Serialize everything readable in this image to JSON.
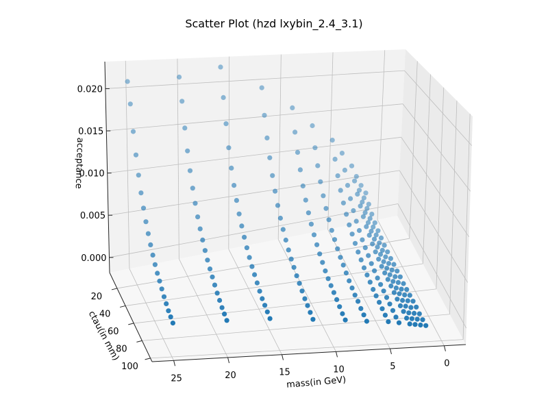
{
  "chart_data": {
    "type": "scatter",
    "title": "Scatter Plot (hzd lxybin_2.4_3.1)",
    "xlabel": "mass(in GeV)",
    "ylabel": "ctau(in mm)",
    "zlabel": "acceptance",
    "projection": "3d",
    "marker_color": "#1f77b4",
    "grid": true,
    "xlim": [
      -2,
      27
    ],
    "ylim": [
      2,
      104
    ],
    "zlim": [
      -0.0018,
      0.0232
    ],
    "x_ticks": [
      0,
      5,
      10,
      15,
      20,
      25
    ],
    "x_tick_labels": [
      "0",
      "5",
      "10",
      "15",
      "20",
      "25"
    ],
    "y_ticks": [
      20,
      40,
      60,
      80,
      100
    ],
    "y_tick_labels": [
      "20",
      "40",
      "60",
      "80",
      "100"
    ],
    "z_ticks": [
      0.0,
      0.005,
      0.01,
      0.015,
      0.02
    ],
    "z_tick_labels": [
      "0.000",
      "0.005",
      "0.010",
      "0.015",
      "0.020"
    ],
    "points_note": "grid of mass values with ctau from 5 to 100 mm in steps of 5",
    "mass_values": [
      25,
      20,
      16,
      12,
      9,
      7,
      5,
      4,
      3,
      2.5,
      2,
      1.5
    ],
    "ctau_values": [
      5,
      10,
      15,
      20,
      25,
      30,
      35,
      40,
      45,
      50,
      55,
      60,
      65,
      70,
      75,
      80,
      85,
      90,
      95,
      100
    ],
    "series": [
      {
        "mass": 25,
        "acceptance": [
          0.021,
          0.0188,
          0.016,
          0.0137,
          0.0118,
          0.0102,
          0.0089,
          0.0078,
          0.0069,
          0.0061,
          0.0054,
          0.0048,
          0.0043,
          0.0039,
          0.0035,
          0.0031,
          0.0028,
          0.0025,
          0.0023,
          0.0021
        ]
      },
      {
        "mass": 20,
        "acceptance": [
          0.0212,
          0.0187,
          0.0159,
          0.0136,
          0.0117,
          0.0101,
          0.0088,
          0.0077,
          0.0068,
          0.006,
          0.0053,
          0.0047,
          0.0042,
          0.0038,
          0.0034,
          0.003,
          0.0027,
          0.0024,
          0.0022,
          0.002
        ]
      },
      {
        "mass": 16,
        "acceptance": [
          0.0222,
          0.0188,
          0.016,
          0.0135,
          0.0115,
          0.0099,
          0.0086,
          0.0075,
          0.0066,
          0.0058,
          0.0051,
          0.0045,
          0.004,
          0.0036,
          0.0032,
          0.0028,
          0.0025,
          0.0023,
          0.0021,
          0.0019
        ]
      },
      {
        "mass": 12,
        "acceptance": [
          0.0192,
          0.0161,
          0.0137,
          0.0117,
          0.01,
          0.0086,
          0.0074,
          0.0064,
          0.0056,
          0.0049,
          0.0043,
          0.0038,
          0.0034,
          0.003,
          0.0027,
          0.0024,
          0.0021,
          0.0019,
          0.0017,
          0.0015
        ]
      },
      {
        "mass": 9,
        "acceptance": [
          0.0162,
          0.0135,
          0.0114,
          0.0097,
          0.0082,
          0.007,
          0.006,
          0.0052,
          0.0045,
          0.0039,
          0.0034,
          0.003,
          0.0026,
          0.0023,
          0.0021,
          0.0019,
          0.0017,
          0.0015,
          0.0013,
          0.0012
        ]
      },
      {
        "mass": 7,
        "acceptance": [
          0.0135,
          0.0111,
          0.0093,
          0.0078,
          0.0066,
          0.0056,
          0.0048,
          0.0041,
          0.0036,
          0.0031,
          0.0027,
          0.0024,
          0.0021,
          0.0018,
          0.0016,
          0.0014,
          0.0013,
          0.0011,
          0.001,
          0.0009
        ]
      },
      {
        "mass": 5,
        "acceptance": [
          0.0112,
          0.0092,
          0.0076,
          0.0063,
          0.0053,
          0.0045,
          0.0038,
          0.0033,
          0.0028,
          0.0024,
          0.0021,
          0.0018,
          0.0016,
          0.0014,
          0.0012,
          0.0011,
          0.001,
          0.0009,
          0.0008,
          0.0007
        ]
      },
      {
        "mass": 4,
        "acceptance": [
          0.0092,
          0.0075,
          0.0061,
          0.005,
          0.0041,
          0.0034,
          0.0029,
          0.0024,
          0.0021,
          0.0018,
          0.0015,
          0.0013,
          0.0011,
          0.001,
          0.0009,
          0.0008,
          0.0007,
          0.0006,
          0.0005,
          0.0005
        ]
      },
      {
        "mass": 3,
        "acceptance": [
          0.0072,
          0.0058,
          0.0047,
          0.0038,
          0.0031,
          0.0025,
          0.0021,
          0.0017,
          0.0014,
          0.0012,
          0.001,
          0.0009,
          0.0008,
          0.0007,
          0.0006,
          0.0005,
          0.0004,
          0.0004,
          0.0003,
          0.0003
        ]
      },
      {
        "mass": 2.5,
        "acceptance": [
          0.0056,
          0.0044,
          0.0035,
          0.0028,
          0.0022,
          0.0018,
          0.0015,
          0.0012,
          0.001,
          0.0008,
          0.0007,
          0.0006,
          0.0005,
          0.0004,
          0.0004,
          0.0003,
          0.0003,
          0.0002,
          0.0002,
          0.0002
        ]
      },
      {
        "mass": 2,
        "acceptance": [
          0.0042,
          0.0032,
          0.0025,
          0.0019,
          0.0015,
          0.0012,
          0.0009,
          0.0007,
          0.0006,
          0.0005,
          0.0004,
          0.0003,
          0.0003,
          0.0002,
          0.0002,
          0.0002,
          0.0001,
          0.0001,
          0.0001,
          0.0001
        ]
      },
      {
        "mass": 1.5,
        "acceptance": [
          0.003,
          0.0022,
          0.0016,
          0.0012,
          0.0009,
          0.0007,
          0.0005,
          0.0004,
          0.0003,
          0.0003,
          0.0002,
          0.0002,
          0.0001,
          0.0001,
          0.0001,
          0.0001,
          0.0001,
          0.0,
          0.0,
          0.0
        ]
      }
    ]
  }
}
